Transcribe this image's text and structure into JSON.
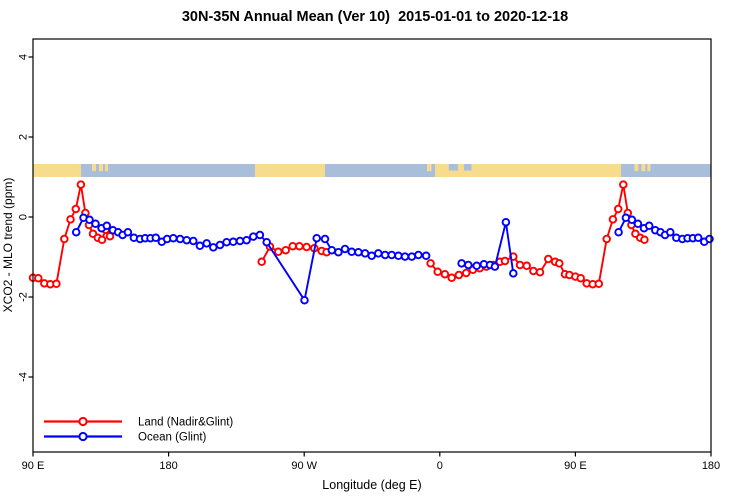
{
  "title": "30N-35N Annual Mean (Ver 10)  2015-01-01 to 2020-12-18",
  "axes": {
    "x": {
      "label": "Longitude (deg E)",
      "ticks": [
        {
          "lon": 90,
          "label": "90 E"
        },
        {
          "lon": 180,
          "label": "180"
        },
        {
          "lon": 270,
          "label": "90 W"
        },
        {
          "lon": 360,
          "label": "0"
        },
        {
          "lon": 450,
          "label": "90 E"
        },
        {
          "lon": 540,
          "label": "180"
        }
      ]
    },
    "y": {
      "label": "XCO2 - MLO trend (ppm)",
      "ticks": [
        {
          "value": 4,
          "label": "4"
        },
        {
          "value": 2,
          "label": "2"
        },
        {
          "value": 0,
          "label": "0"
        },
        {
          "value": -2,
          "label": "-2"
        },
        {
          "value": -4,
          "label": "-4"
        }
      ]
    }
  },
  "colors": {
    "land_series": "#ff0000",
    "ocean_series": "#0000ff",
    "map_land": "#f8dc8e",
    "map_ocean": "#a9bedb",
    "axis": "#000000",
    "point_fill": "#ffffff"
  },
  "legend": [
    {
      "label": "Land (Nadir&Glint)",
      "color": "#ff0000"
    },
    {
      "label": "Ocean (Glint)",
      "color": "#0000ff"
    }
  ],
  "map_strip": {
    "band_value_range": [
      1.0,
      1.325
    ],
    "land_segments": [
      {
        "lon": [
          90,
          121.9
        ]
      },
      {
        "lon": [
          129.2,
          131.8
        ],
        "island": true
      },
      {
        "lon": [
          133.8,
          136.4
        ],
        "island": true
      },
      {
        "lon": [
          137.8,
          139.8
        ],
        "island": true
      },
      {
        "lon": [
          237.3,
          283.8
        ]
      },
      {
        "lon": [
          351.5,
          354.5
        ],
        "island": true
      },
      {
        "lon": [
          356.8,
          480.3
        ]
      },
      {
        "lon": [
          489.2,
          491.8
        ],
        "island": true
      },
      {
        "lon": [
          493.8,
          496.4
        ],
        "island": true
      },
      {
        "lon": [
          497.8,
          499.8
        ],
        "island": true
      }
    ],
    "ocean_inlets": [
      [
        366,
        372
      ],
      [
        376,
        381
      ]
    ]
  },
  "chart_data": {
    "type": "line",
    "title": "30N-35N Annual Mean (Ver 10)  2015-01-01 to 2020-12-18",
    "xlabel": "Longitude (deg E)",
    "ylabel": "XCO2 - MLO trend (ppm)",
    "xlim": [
      90,
      540
    ],
    "ylim": [
      -5.875,
      4.45
    ],
    "grid": false,
    "legend_position": "bottom-left-inside",
    "series": [
      {
        "name": "Land (Nadir&Glint)",
        "color": "#ff0000",
        "segments": [
          [
            [
              90,
              -1.52
            ],
            [
              93.5,
              -1.53
            ],
            [
              97.5,
              -1.66
            ],
            [
              101.5,
              -1.68
            ],
            [
              105.5,
              -1.67
            ],
            [
              110.8,
              -0.55
            ],
            [
              114.9,
              -0.06
            ],
            [
              118.4,
              0.2
            ],
            [
              121.8,
              0.81
            ],
            [
              124.8,
              0.1
            ],
            [
              127.2,
              -0.2
            ],
            [
              129.8,
              -0.42
            ],
            [
              133,
              -0.52
            ],
            [
              135.8,
              -0.57
            ],
            [
              138.2,
              -0.32
            ],
            [
              141.1,
              -0.48
            ]
          ],
          [
            [
              241.8,
              -1.12
            ],
            [
              247.3,
              -0.74
            ],
            [
              252.8,
              -0.87
            ],
            [
              257.7,
              -0.83
            ],
            [
              262.4,
              -0.73
            ],
            [
              266.8,
              -0.73
            ],
            [
              271.6,
              -0.75
            ],
            [
              276.7,
              -0.78
            ],
            [
              281.6,
              -0.85
            ],
            [
              284.9,
              -0.88
            ]
          ],
          [
            [
              353.9,
              -1.16
            ],
            [
              358.6,
              -1.37
            ],
            [
              363.4,
              -1.43
            ],
            [
              367.9,
              -1.52
            ],
            [
              372.7,
              -1.45
            ],
            [
              377.5,
              -1.4
            ],
            [
              382,
              -1.32
            ],
            [
              386.5,
              -1.28
            ],
            [
              391,
              -1.24
            ],
            [
              395.5,
              -1.2
            ],
            [
              399.9,
              -1.12
            ],
            [
              403.3,
              -1.1
            ],
            [
              408.8,
              -0.99
            ],
            [
              413.2,
              -1.2
            ],
            [
              417.7,
              -1.22
            ],
            [
              422.1,
              -1.35
            ],
            [
              426.5,
              -1.38
            ],
            [
              432,
              -1.05
            ],
            [
              436.5,
              -1.12
            ],
            [
              439.3,
              -1.16
            ],
            [
              443.1,
              -1.43
            ],
            [
              446,
              -1.45
            ],
            [
              450,
              -1.49
            ],
            [
              453.5,
              -1.53
            ],
            [
              457.5,
              -1.66
            ],
            [
              461.5,
              -1.68
            ],
            [
              465.5,
              -1.67
            ],
            [
              470.8,
              -0.55
            ],
            [
              474.9,
              -0.06
            ],
            [
              478.4,
              0.2
            ],
            [
              481.8,
              0.81
            ],
            [
              484.8,
              0.1
            ],
            [
              487.2,
              -0.2
            ],
            [
              489.8,
              -0.42
            ],
            [
              493,
              -0.52
            ],
            [
              495.8,
              -0.57
            ]
          ]
        ]
      },
      {
        "name": "Ocean (Glint)",
        "color": "#0000ff",
        "segments": [
          [
            [
              118.7,
              -0.38
            ],
            [
              123.5,
              -0.02
            ],
            [
              127.5,
              -0.07
            ],
            [
              131.5,
              -0.17
            ],
            [
              135.5,
              -0.28
            ],
            [
              139,
              -0.22
            ],
            [
              143,
              -0.33
            ],
            [
              146.5,
              -0.38
            ],
            [
              149.5,
              -0.45
            ],
            [
              153,
              -0.38
            ],
            [
              157,
              -0.52
            ],
            [
              161,
              -0.55
            ],
            [
              164.5,
              -0.53
            ],
            [
              168,
              -0.53
            ],
            [
              171.5,
              -0.52
            ],
            [
              175.5,
              -0.62
            ],
            [
              179,
              -0.55
            ],
            [
              183.1,
              -0.53
            ],
            [
              187.6,
              -0.55
            ],
            [
              192,
              -0.58
            ],
            [
              196.4,
              -0.6
            ],
            [
              200.8,
              -0.72
            ],
            [
              205.3,
              -0.66
            ],
            [
              209.7,
              -0.76
            ],
            [
              214.1,
              -0.7
            ],
            [
              218.5,
              -0.63
            ],
            [
              222.9,
              -0.62
            ],
            [
              227.4,
              -0.6
            ],
            [
              231.8,
              -0.58
            ],
            [
              236.2,
              -0.49
            ],
            [
              240.6,
              -0.45
            ],
            [
              245.1,
              -0.63
            ],
            [
              270.2,
              -2.08
            ],
            [
              278.3,
              -0.53
            ],
            [
              283.8,
              -0.55
            ],
            [
              288.3,
              -0.83
            ],
            [
              292.7,
              -0.88
            ],
            [
              297.1,
              -0.8
            ],
            [
              301.5,
              -0.87
            ],
            [
              306,
              -0.88
            ],
            [
              310.4,
              -0.91
            ],
            [
              314.8,
              -0.97
            ],
            [
              319.2,
              -0.91
            ],
            [
              323.7,
              -0.95
            ],
            [
              328.1,
              -0.95
            ],
            [
              332.5,
              -0.97
            ],
            [
              336.9,
              -0.99
            ],
            [
              341.4,
              -0.99
            ],
            [
              345.8,
              -0.95
            ],
            [
              350.9,
              -0.97
            ]
          ],
          [
            [
              374.5,
              -1.16
            ],
            [
              378.9,
              -1.2
            ],
            [
              384.5,
              -1.22
            ],
            [
              389.3,
              -1.18
            ],
            [
              393.3,
              -1.2
            ],
            [
              396.6,
              -1.24
            ],
            [
              403.9,
              -0.13
            ],
            [
              408.8,
              -1.41
            ]
          ],
          [
            [
              478.7,
              -0.38
            ],
            [
              483.5,
              -0.02
            ],
            [
              487.5,
              -0.07
            ],
            [
              491.5,
              -0.17
            ],
            [
              495.5,
              -0.28
            ],
            [
              499,
              -0.22
            ],
            [
              503,
              -0.33
            ],
            [
              506.5,
              -0.38
            ],
            [
              509.5,
              -0.45
            ],
            [
              513,
              -0.38
            ],
            [
              517,
              -0.52
            ],
            [
              521,
              -0.55
            ],
            [
              524.5,
              -0.53
            ],
            [
              528,
              -0.53
            ],
            [
              531.5,
              -0.52
            ],
            [
              535.5,
              -0.62
            ],
            [
              539,
              -0.55
            ]
          ]
        ]
      }
    ]
  }
}
